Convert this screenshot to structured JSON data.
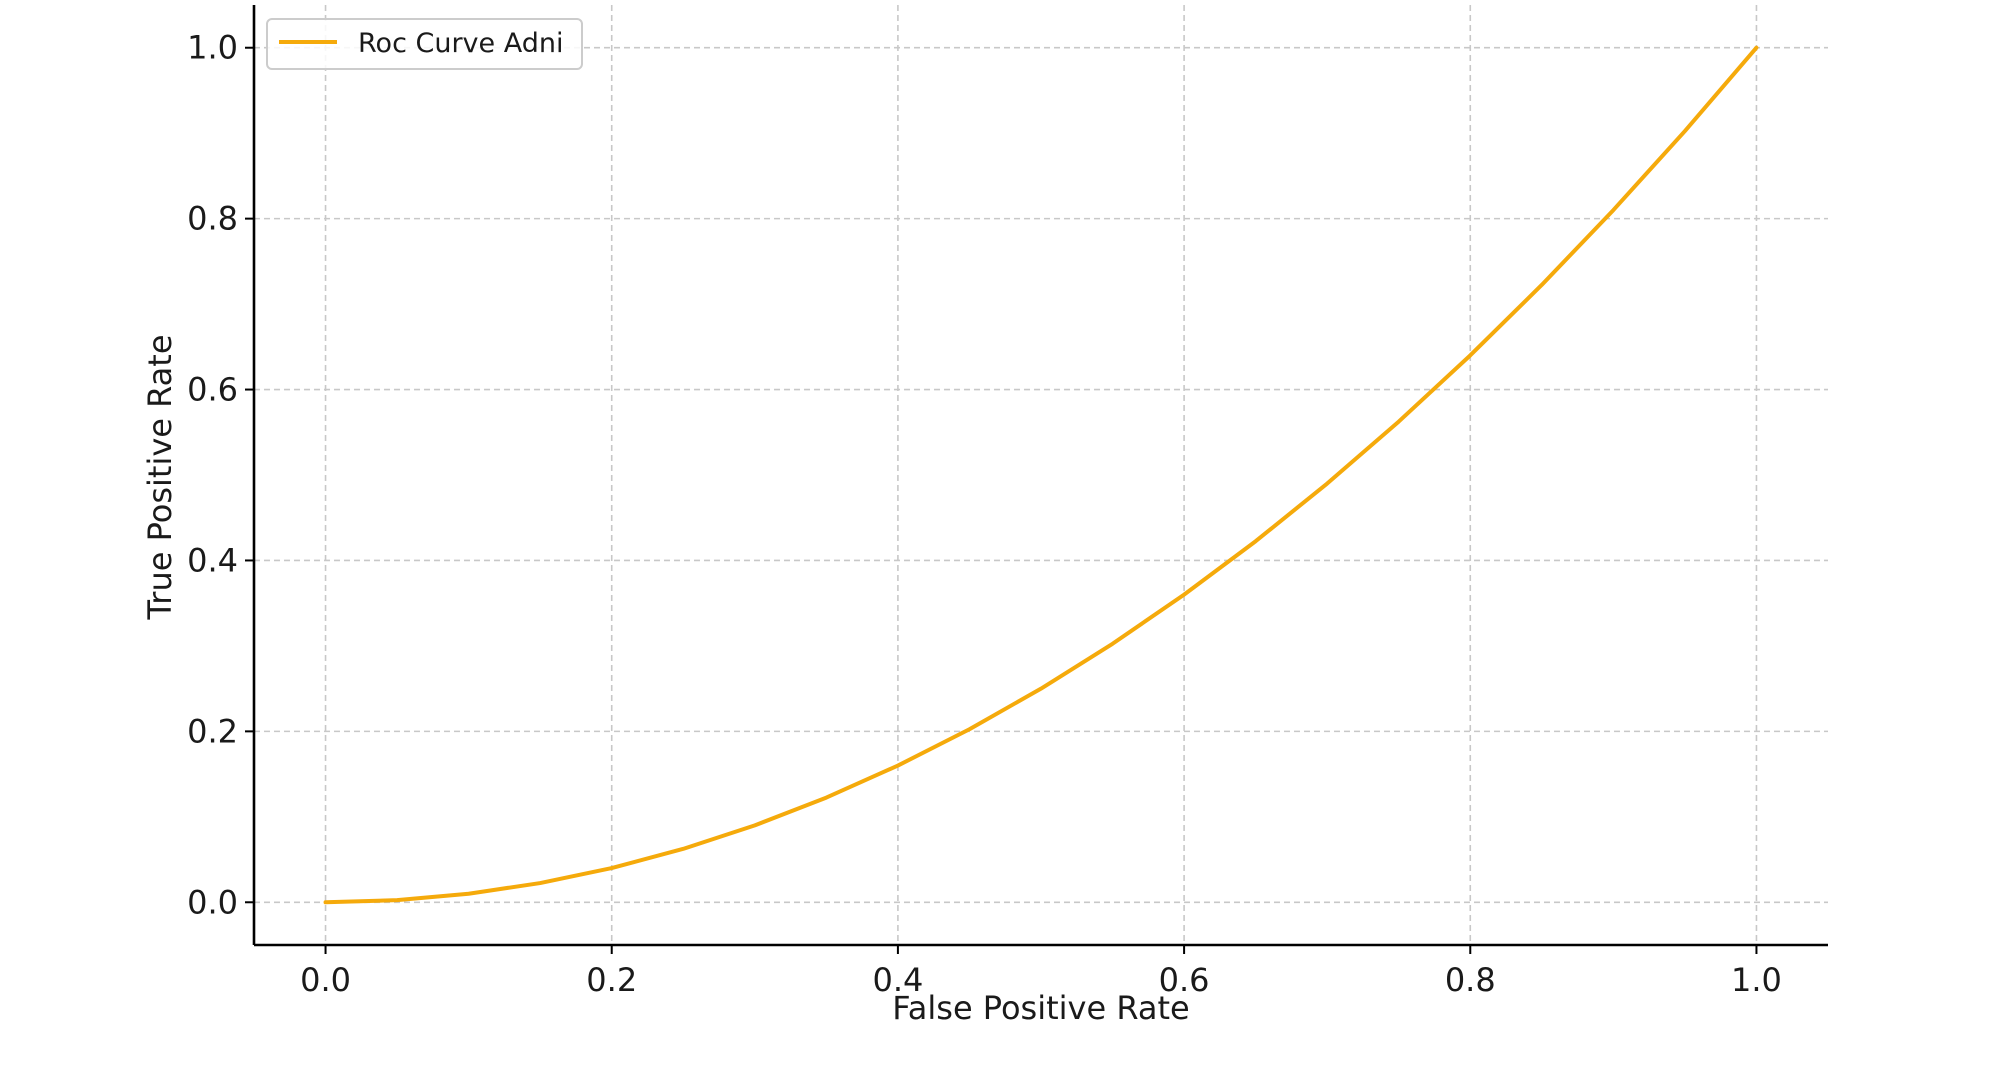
{
  "chart_data": {
    "type": "line",
    "title": "",
    "xlabel": "False Positive Rate",
    "ylabel": "True Positive Rate",
    "xlim": [
      -0.05,
      1.05
    ],
    "ylim": [
      -0.05,
      1.05
    ],
    "x_ticks": [
      "0.0",
      "0.2",
      "0.4",
      "0.6",
      "0.8",
      "1.0"
    ],
    "y_ticks": [
      "0.0",
      "0.2",
      "0.4",
      "0.6",
      "0.8",
      "1.0"
    ],
    "grid": true,
    "legend_position": "top-left",
    "series": [
      {
        "name": "Roc Curve Adni",
        "color": "#f5aa0b",
        "x": [
          0.0,
          0.05,
          0.1,
          0.15,
          0.2,
          0.25,
          0.3,
          0.35,
          0.4,
          0.45,
          0.5,
          0.55,
          0.6,
          0.65,
          0.7,
          0.75,
          0.8,
          0.85,
          0.9,
          0.95,
          1.0
        ],
        "y": [
          0.0,
          0.0025,
          0.01,
          0.0225,
          0.04,
          0.0625,
          0.09,
          0.1225,
          0.16,
          0.2025,
          0.25,
          0.3025,
          0.36,
          0.4225,
          0.49,
          0.5625,
          0.64,
          0.7225,
          0.81,
          0.9025,
          1.0
        ]
      }
    ]
  }
}
